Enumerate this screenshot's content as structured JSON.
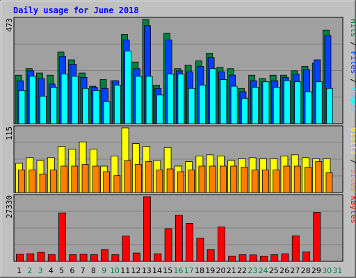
{
  "chart_data": {
    "type": "bar",
    "title": "Daily usage for June 2018",
    "categories": [
      "1",
      "2",
      "3",
      "4",
      "5",
      "6",
      "7",
      "8",
      "9",
      "10",
      "11",
      "12",
      "13",
      "14",
      "15",
      "16",
      "17",
      "18",
      "19",
      "20",
      "21",
      "22",
      "23",
      "24",
      "25",
      "26",
      "27",
      "28",
      "29",
      "30",
      "31"
    ],
    "weekend_days": [
      "2",
      "3",
      "9",
      "10",
      "16",
      "17",
      "23",
      "24",
      "30",
      "31"
    ],
    "colors": {
      "pages": "#00ffff",
      "files": "#0040ff",
      "hits": "#008040",
      "visits": "#ffff00",
      "sites": "#ff8000",
      "kbytes": "#ff0000",
      "weekday_label": "#000000",
      "weekend_label": "#008040",
      "title": "#0000ff",
      "background": "#c0c0c0",
      "panel": "#a0a0a0"
    },
    "panels": [
      {
        "id": "hits-files-pages",
        "ymax_label": "473",
        "ylim": [
          0,
          473
        ],
        "right_labels": [
          {
            "text": "Hits",
            "color": "#008040"
          },
          {
            "text": " / ",
            "color": "#000000"
          },
          {
            "text": "Files",
            "color": "#0040ff"
          },
          {
            "text": " / ",
            "color": "#000000"
          },
          {
            "text": "Pages",
            "color": "#00ffff"
          }
        ],
        "series": [
          {
            "name": "Hits",
            "color": "#008040",
            "values": [
              220,
              250,
              230,
              220,
              325,
              290,
              230,
              170,
              200,
              195,
              405,
              280,
              473,
              175,
              410,
              250,
              265,
              285,
              320,
              255,
              250,
              160,
              220,
              205,
              220,
              220,
              240,
              260,
              275,
              425,
              0
            ]
          },
          {
            "name": "Files",
            "color": "#0040ff",
            "values": [
              195,
              240,
              205,
              180,
              305,
              270,
              210,
              165,
              160,
              195,
              380,
              250,
              445,
              160,
              380,
              240,
              235,
              260,
              300,
              235,
              220,
              145,
              195,
              190,
              195,
              210,
              225,
              245,
              290,
              400,
              0
            ]
          },
          {
            "name": "Pages",
            "color": "#00ffff",
            "values": [
              150,
              215,
              125,
              165,
              225,
              215,
              160,
              150,
              100,
              175,
              330,
              215,
              215,
              130,
              225,
              225,
              160,
              175,
              250,
              200,
              170,
              115,
              165,
              190,
              165,
              195,
              190,
              145,
              190,
              160,
              0
            ]
          }
        ]
      },
      {
        "id": "visits-sites",
        "ymax_label": "115",
        "ylim": [
          0,
          115
        ],
        "right_labels": [
          {
            "text": "Visits",
            "color": "#ffff00"
          },
          {
            "text": " / ",
            "color": "#000000"
          },
          {
            "text": "Sites",
            "color": "#ff8000"
          }
        ],
        "series": [
          {
            "name": "Visits",
            "color": "#ffff00",
            "values": [
              52,
              62,
              57,
              62,
              82,
              77,
              90,
              77,
              47,
              65,
              115,
              87,
              82,
              57,
              80,
              47,
              55,
              65,
              67,
              65,
              57,
              60,
              62,
              60,
              60,
              65,
              67,
              62,
              60,
              60,
              0
            ]
          },
          {
            "name": "Sites",
            "color": "#ff8000",
            "values": [
              40,
              40,
              33,
              40,
              47,
              47,
              50,
              47,
              37,
              30,
              57,
              50,
              55,
              40,
              42,
              37,
              40,
              47,
              47,
              47,
              47,
              45,
              40,
              40,
              40,
              47,
              47,
              45,
              55,
              35,
              0
            ]
          }
        ]
      },
      {
        "id": "kbytes",
        "ymax_label": "27330",
        "ylim": [
          0,
          27330
        ],
        "right_labels": [
          {
            "text": "KBytes",
            "color": "#ff0000"
          }
        ],
        "series": [
          {
            "name": "KBytes",
            "color": "#ff0000",
            "values": [
              3000,
              3200,
              3800,
              2800,
              20500,
              2800,
              3000,
              2800,
              5000,
              2800,
              10700,
              3500,
              27330,
              3200,
              13800,
              19500,
              16000,
              9800,
              5000,
              14500,
              2200,
              2800,
              2700,
              2200,
              2800,
              3200,
              10800,
              4000,
              20700,
              0,
              0
            ]
          }
        ]
      }
    ]
  }
}
